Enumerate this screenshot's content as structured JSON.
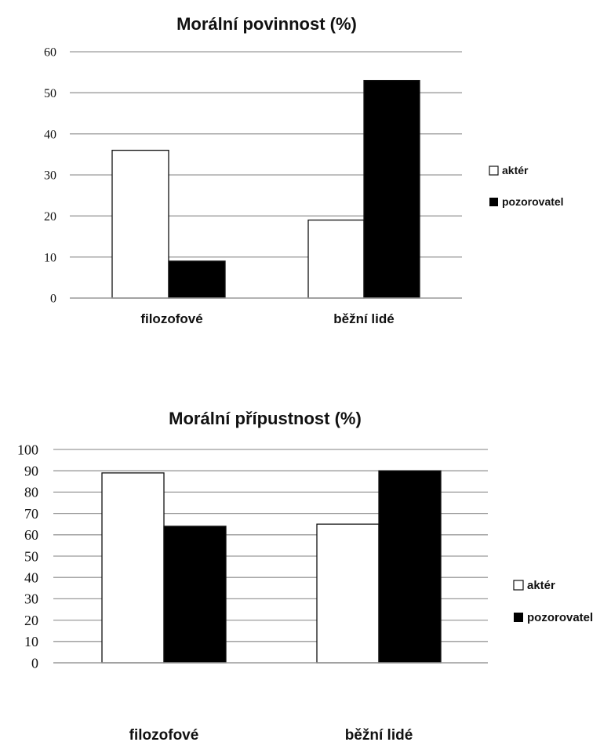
{
  "colors": {
    "akter": "#ffffff",
    "pozorovatel": "#000000",
    "grid": "#9a9a9a",
    "outline": "#111111"
  },
  "chart_data": [
    {
      "type": "bar",
      "title": "Morální povinnost (%)",
      "categories": [
        "filozofové",
        "běžní lidé"
      ],
      "series": [
        {
          "name": "aktér",
          "values": [
            36,
            19
          ]
        },
        {
          "name": "pozorovatel",
          "values": [
            9,
            53
          ]
        }
      ],
      "ylim": [
        0,
        60
      ],
      "yticks": [
        0,
        10,
        20,
        30,
        40,
        50,
        60
      ],
      "grid": true,
      "legend": "right",
      "xlabel": "",
      "ylabel": ""
    },
    {
      "type": "bar",
      "title": "Morální přípustnost (%)",
      "categories": [
        "filozofové",
        "běžní lidé"
      ],
      "series": [
        {
          "name": "aktér",
          "values": [
            89,
            65
          ]
        },
        {
          "name": "pozorovatel",
          "values": [
            64,
            90
          ]
        }
      ],
      "ylim": [
        0,
        100
      ],
      "yticks": [
        0,
        10,
        20,
        30,
        40,
        50,
        60,
        70,
        80,
        90,
        100
      ],
      "grid": true,
      "legend": "right",
      "xlabel": "",
      "ylabel": ""
    }
  ]
}
